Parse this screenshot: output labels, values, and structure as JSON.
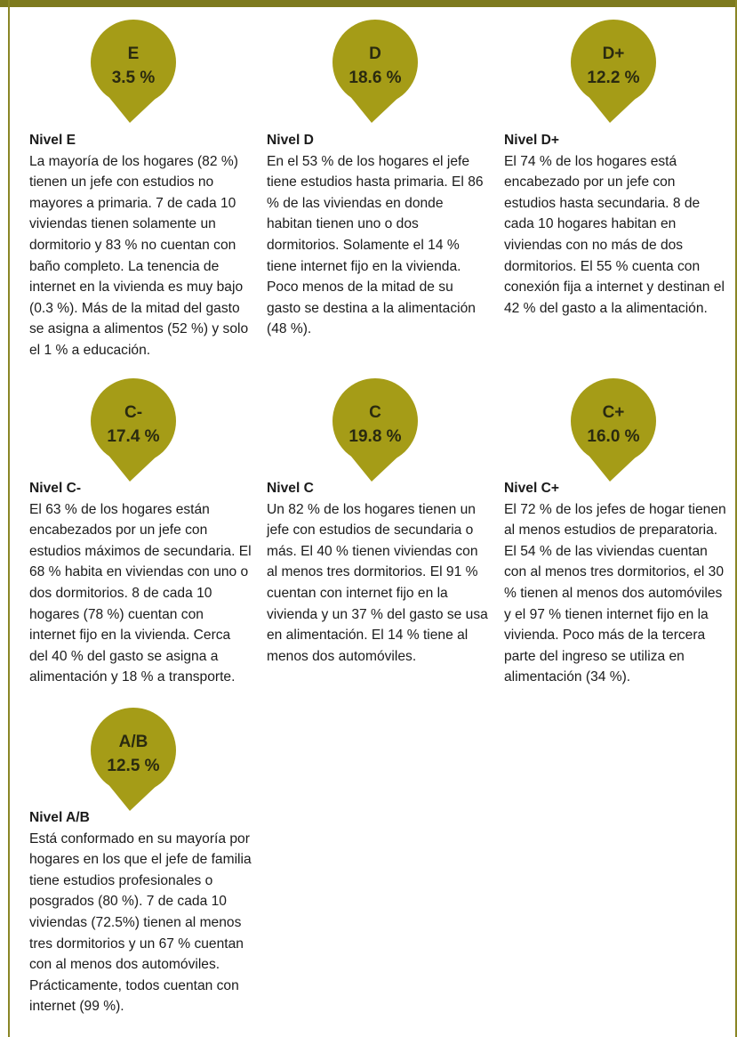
{
  "levels": [
    {
      "code": "E",
      "percent": "3.5 %",
      "title": "Nivel E",
      "text": "La mayoría de los hogares (82 %) tienen un jefe con estudios no mayores a primaria. 7 de cada 10 viviendas tienen solamente un dormitorio y 83 % no cuentan con baño completo. La tenencia de internet en la vivienda es muy bajo (0.3 %). Más de la mitad del gasto se asigna a alimentos (52 %) y solo el 1 % a educación."
    },
    {
      "code": "D",
      "percent": "18.6 %",
      "title": "Nivel D",
      "text": "En el 53 % de los hogares el jefe tiene estudios hasta primaria. El 86 % de las viviendas en donde habitan tienen uno o dos dormitorios. Solamente el 14 % tiene internet fijo en la vivienda. Poco menos de la mitad de su gasto se destina a la alimentación (48 %)."
    },
    {
      "code": "D+",
      "percent": "12.2 %",
      "title": "Nivel D+",
      "text": "El 74 % de los hogares está encabezado por un jefe con estudios hasta secundaria. 8 de cada 10 hogares habitan en viviendas con no más de dos dormitorios. El 55 % cuenta con conexión fija a internet y destinan el 42 % del gasto a la alimentación."
    },
    {
      "code": "C-",
      "percent": "17.4 %",
      "title": "Nivel C-",
      "text": "El 63 % de los hogares están encabezados por un jefe con estudios máximos de secundaria. El 68 % habita en viviendas con uno o dos dormitorios. 8 de cada 10 hogares (78 %) cuentan con internet fijo en la vivienda. Cerca del 40 % del gasto se asigna a alimentación y 18 % a transporte."
    },
    {
      "code": "C",
      "percent": "19.8 %",
      "title": "Nivel C",
      "text": "Un 82 % de los hogares tienen un jefe con estudios de secundaria o más. El 40 % tienen viviendas con al menos tres dormitorios. El 91 % cuentan con internet fijo en la vivienda y un 37 % del gasto se usa en alimentación. El 14 % tiene al menos dos automóviles."
    },
    {
      "code": "C+",
      "percent": "16.0 %",
      "title": "Nivel C+",
      "text": "El 72 % de los jefes de hogar tienen al menos estudios de preparatoria. El 54 % de las viviendas cuentan con al menos tres dormitorios, el 30 % tienen al menos dos automóviles y el 97 % tienen internet fijo en la vivienda. Poco más de la tercera parte del ingreso se utiliza en alimentación (34 %)."
    },
    {
      "code": "A/B",
      "percent": "12.5 %",
      "title": "Nivel A/B",
      "text": "Está conformado en su mayoría por hogares en los que el jefe de familia tiene estudios profesionales o posgrados (80 %). 7 de cada 10 viviendas (72.5%) tienen al menos tres dormitorios y un 67 % cuentan con al menos dos automóviles. Prácticamente, todos cuentan con internet (99 %)."
    }
  ]
}
